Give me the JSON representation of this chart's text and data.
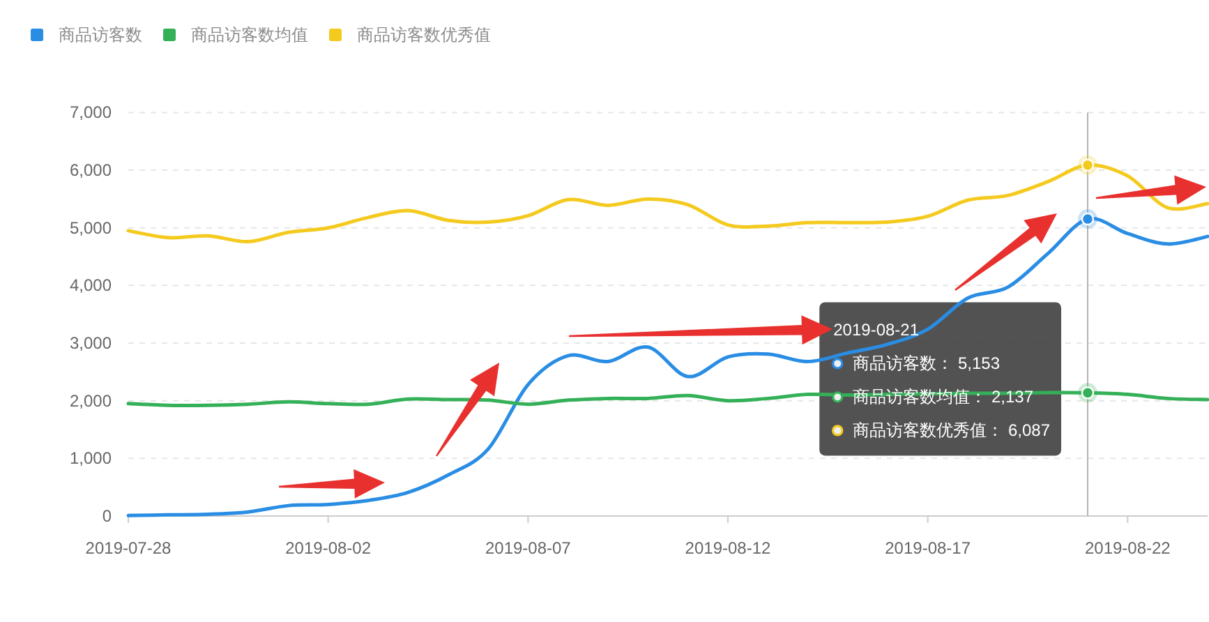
{
  "chart_data": {
    "type": "line",
    "x": [
      "2019-07-28",
      "2019-07-29",
      "2019-07-30",
      "2019-07-31",
      "2019-08-01",
      "2019-08-02",
      "2019-08-03",
      "2019-08-04",
      "2019-08-05",
      "2019-08-06",
      "2019-08-07",
      "2019-08-08",
      "2019-08-09",
      "2019-08-10",
      "2019-08-11",
      "2019-08-12",
      "2019-08-13",
      "2019-08-14",
      "2019-08-15",
      "2019-08-16",
      "2019-08-17",
      "2019-08-18",
      "2019-08-19",
      "2019-08-20",
      "2019-08-21",
      "2019-08-22",
      "2019-08-23",
      "2019-08-24"
    ],
    "xlim": [
      "2019-07-28",
      "2019-08-24"
    ],
    "xticks": [
      "2019-07-28",
      "2019-08-02",
      "2019-08-07",
      "2019-08-12",
      "2019-08-17",
      "2019-08-22"
    ],
    "ylim": [
      0,
      7000
    ],
    "yticks": [
      0,
      {
        "value": 1000,
        "label": "1,000"
      },
      {
        "value": 2000,
        "label": "2,000"
      },
      {
        "value": 3000,
        "label": "3,000"
      },
      {
        "value": 4000,
        "label": "4,000"
      },
      {
        "value": 5000,
        "label": "5,000"
      },
      {
        "value": 6000,
        "label": "6,000"
      },
      {
        "value": 7000,
        "label": "7,000"
      }
    ],
    "grid": "y",
    "legend": "top left",
    "marker": "none",
    "line_style": "solid",
    "series": [
      {
        "name": "商品访客数",
        "color": "#2a8de4",
        "values": [
          10,
          20,
          30,
          70,
          180,
          200,
          270,
          410,
          710,
          1160,
          2280,
          2780,
          2680,
          2930,
          2420,
          2760,
          2810,
          2680,
          2830,
          2980,
          3240,
          3780,
          3970,
          4550,
          5153,
          4900,
          4720,
          4850
        ]
      },
      {
        "name": "商品访客数均值",
        "color": "#34b058",
        "values": [
          1950,
          1920,
          1920,
          1940,
          1980,
          1950,
          1940,
          2030,
          2020,
          2010,
          1940,
          2010,
          2040,
          2040,
          2090,
          2000,
          2040,
          2110,
          2100,
          2110,
          2120,
          2130,
          2130,
          2140,
          2137,
          2110,
          2040,
          2020
        ]
      },
      {
        "name": "商品访客数优秀值",
        "color": "#f4ca1f",
        "values": [
          4950,
          4830,
          4860,
          4760,
          4920,
          5000,
          5180,
          5300,
          5130,
          5100,
          5210,
          5490,
          5390,
          5500,
          5400,
          5050,
          5030,
          5090,
          5090,
          5100,
          5200,
          5480,
          5560,
          5800,
          6087,
          5900,
          5350,
          5420
        ]
      }
    ],
    "ref_lines": [
      {
        "axis": "x",
        "value": "2019-08-21",
        "color": "#b4b4b4"
      }
    ],
    "annotations": [
      "2019-08-21",
      "商品访客数： 5,153",
      "商品访客数均值： 2,137",
      "商品访客数优秀值： 6,087"
    ]
  }
}
